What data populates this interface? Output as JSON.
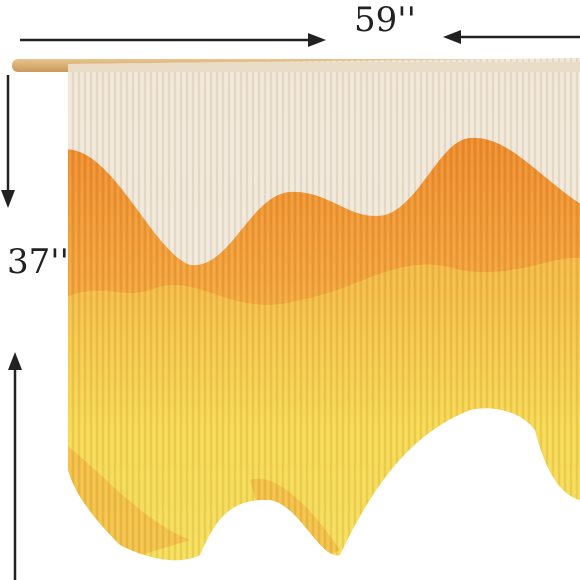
{
  "width_label": "59''",
  "height_label": "37''"
}
